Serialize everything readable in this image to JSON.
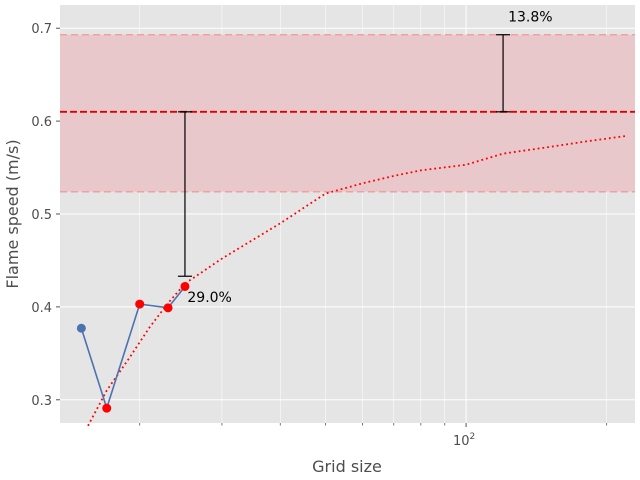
{
  "chart_data": {
    "type": "line",
    "title": "",
    "xlabel": "Grid size",
    "ylabel": "Flame speed (m/s)",
    "xscale": "log",
    "xlim": [
      13.5,
      230
    ],
    "ylim": [
      0.275,
      0.725
    ],
    "grid": true,
    "background": "#e5e5e5",
    "x_ticks": [
      {
        "value": 100,
        "base": "10",
        "exp": "2"
      }
    ],
    "y_ticks": [
      {
        "value": 0.3,
        "label": "0.3"
      },
      {
        "value": 0.4,
        "label": "0.4"
      },
      {
        "value": 0.5,
        "label": "0.5"
      },
      {
        "value": 0.6,
        "label": "0.6"
      },
      {
        "value": 0.7,
        "label": "0.7"
      }
    ],
    "x_minor_grid": [
      20,
      30,
      40,
      50,
      60,
      70,
      80,
      90,
      200
    ],
    "series": [
      {
        "kind": "line-markers",
        "color": "#4c72b0",
        "x": [
          15,
          17,
          20,
          23,
          25
        ],
        "y": [
          0.377,
          0.291,
          0.403,
          0.399,
          0.422
        ],
        "marker_colors": [
          "#4c72b0",
          "#ff0000",
          "#ff0000",
          "#ff0000",
          "#ff0000"
        ]
      },
      {
        "kind": "fit-dotted",
        "color": "#ff0000",
        "x": [
          15.5,
          17,
          19,
          21,
          23,
          25,
          30,
          40,
          50,
          60,
          70,
          80,
          100,
          120,
          150,
          180,
          220
        ],
        "y": [
          0.272,
          0.31,
          0.345,
          0.378,
          0.404,
          0.425,
          0.452,
          0.49,
          0.522,
          0.533,
          0.541,
          0.547,
          0.553,
          0.565,
          0.572,
          0.578,
          0.584
        ]
      }
    ],
    "reference": {
      "value": 0.61,
      "upper": 0.693,
      "lower": 0.524,
      "line_color": "#e00000",
      "band_color": "#e8c8ca",
      "bound_color": "#f0a0a0"
    },
    "error_bars": [
      {
        "x": 25,
        "y_low": 0.433,
        "y_high": 0.61
      },
      {
        "x": 120,
        "y_low": 0.61,
        "y_high": 0.693
      }
    ],
    "annotations": [
      {
        "text": "29.0%",
        "x": 25.3,
        "y": 0.405
      },
      {
        "text": "13.8%",
        "x": 123,
        "y": 0.707
      }
    ]
  }
}
